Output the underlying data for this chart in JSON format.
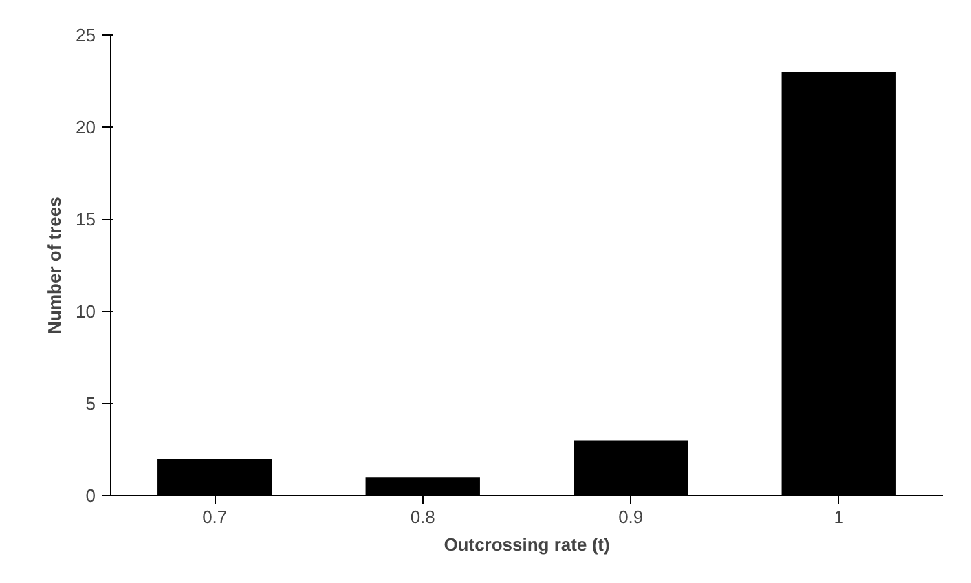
{
  "chart_data": {
    "type": "bar",
    "xlabel": "Outcrossing rate (t)",
    "ylabel": "Number of trees",
    "categories": [
      "0.7",
      "0.8",
      "0.9",
      "1"
    ],
    "values": [
      2,
      1,
      3,
      23
    ],
    "color": "#000000",
    "ylim": [
      0,
      25
    ],
    "yticks": [
      0,
      5,
      10,
      15,
      20,
      25
    ],
    "grid": false
  }
}
